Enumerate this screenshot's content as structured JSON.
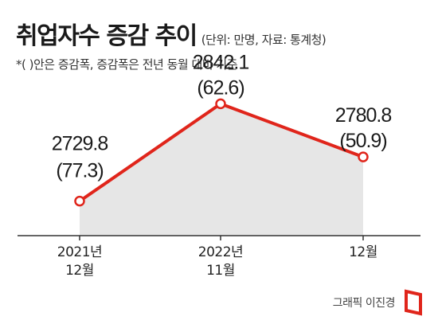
{
  "header": {
    "title": "취업자수 증감 추이",
    "unit_note": "(단위: 만명, 자료: 통계청)",
    "footnote": "*( )안은 증감폭, 증감폭은 전년 동월 대비 기준"
  },
  "chart_data": {
    "type": "area",
    "categories": [
      "2021년 12월",
      "2022년 11월",
      "12월"
    ],
    "category_lines": [
      [
        "2021년",
        "12월"
      ],
      [
        "2022년",
        "11월"
      ],
      [
        "12월"
      ]
    ],
    "values": [
      2729.8,
      2842.1,
      2780.8
    ],
    "changes": [
      77.3,
      62.6,
      50.9
    ],
    "value_labels": [
      "2729.8",
      "2842.1",
      "2780.8"
    ],
    "change_labels": [
      "(77.3)",
      "(62.6)",
      "(50.9)"
    ],
    "ylim": [
      2690,
      2870
    ],
    "title": "취업자수 증감 추이",
    "xlabel": "",
    "ylabel": "",
    "grid": false,
    "colors": {
      "line": "#e0251b",
      "fill": "#e6e6e6",
      "axis": "#333333"
    }
  },
  "credit": {
    "text": "그래픽 이진경",
    "logo_color": "#e0251b"
  }
}
